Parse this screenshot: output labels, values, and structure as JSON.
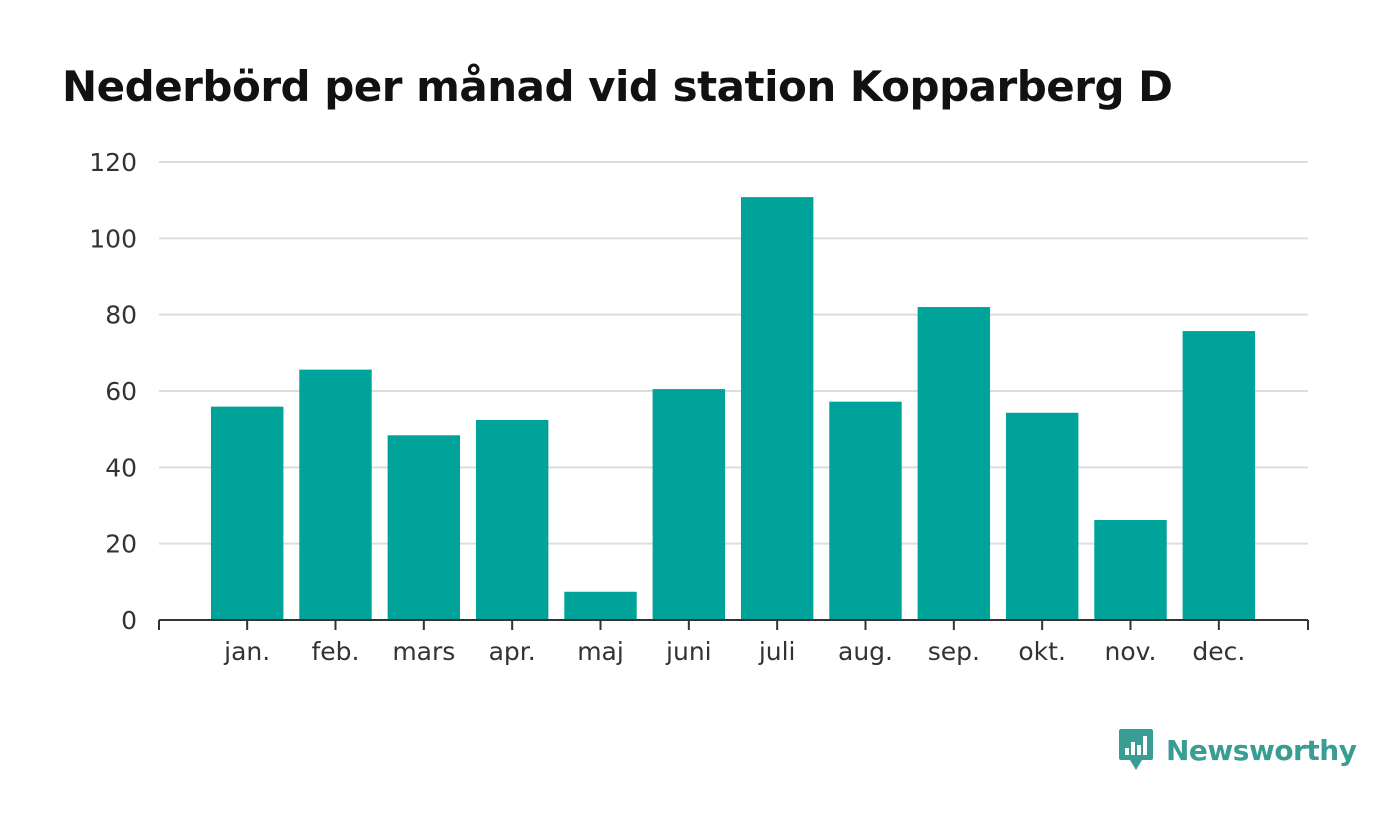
{
  "brand": {
    "name": "Newsworthy",
    "logo_icon": "newsworthy-logo-icon"
  },
  "colors": {
    "bar": "#00a39a",
    "grid": "#dddddd",
    "axis": "#333333",
    "brand": "#3a9d94"
  },
  "chart_data": {
    "type": "bar",
    "title": "Nederbörd per månad vid station Kopparberg D",
    "xlabel": "",
    "ylabel": "",
    "categories": [
      "jan.",
      "feb.",
      "mars",
      "apr.",
      "maj",
      "juni",
      "juli",
      "aug.",
      "sep.",
      "okt.",
      "nov.",
      "dec."
    ],
    "values": [
      55.9,
      65.6,
      48.4,
      52.4,
      7.4,
      60.5,
      110.8,
      57.2,
      82.0,
      54.3,
      26.2,
      75.7
    ],
    "ylim": [
      0,
      120
    ],
    "yticks": [
      0,
      20,
      40,
      60,
      80,
      100,
      120
    ],
    "grid": true,
    "legend": "none"
  }
}
